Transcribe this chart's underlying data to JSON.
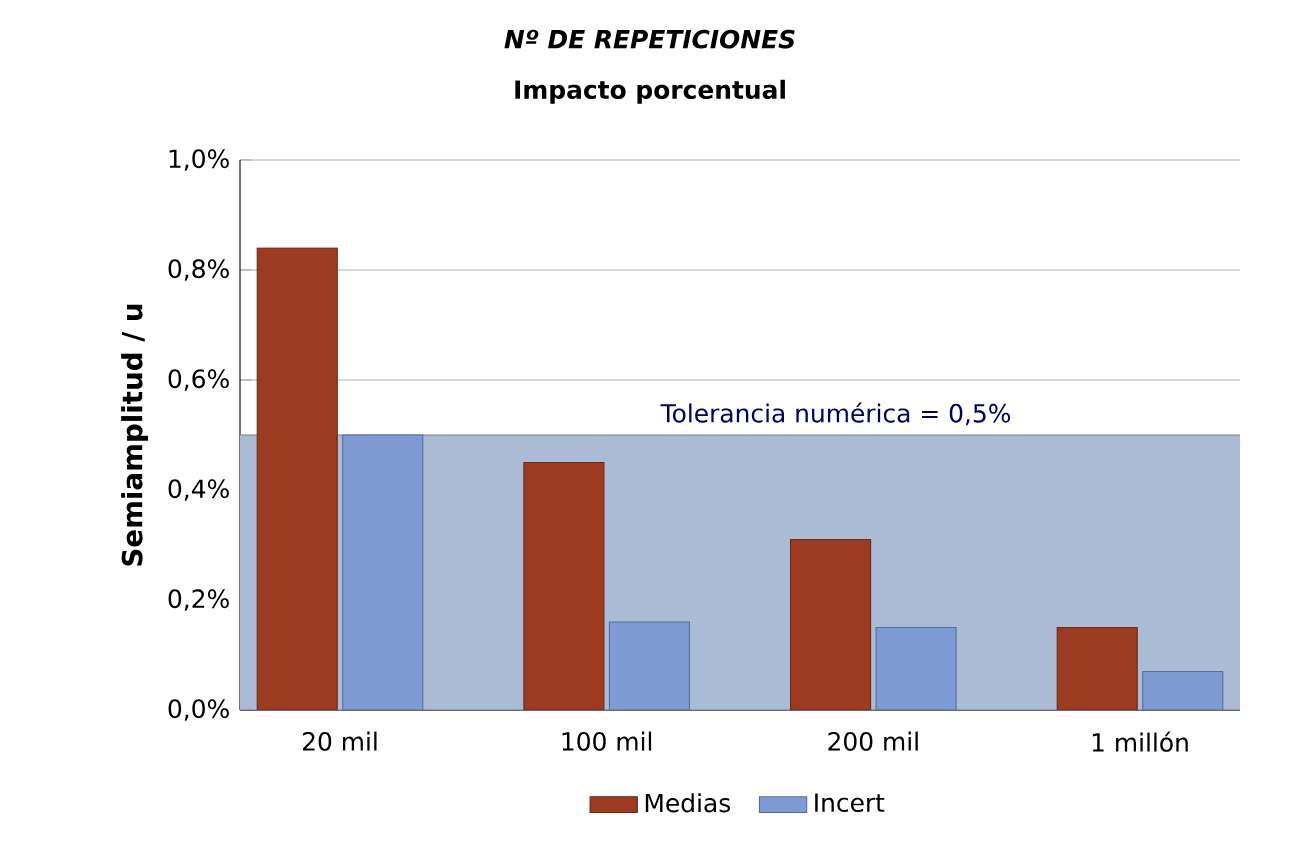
{
  "chart_data": {
    "type": "bar",
    "title": "*Nº DE REPETICIONES*",
    "subtitle": "Impacto porcentual",
    "ylabel": "Semiamplitud / u",
    "categories": [
      "20 mil",
      "100 mil",
      "200 mil",
      "1 millón"
    ],
    "series": [
      {
        "name": "Medias",
        "color": "#9c3a22",
        "values": [
          0.84,
          0.45,
          0.31,
          0.15
        ]
      },
      {
        "name": "Incert",
        "color": "#7f9bd6",
        "values": [
          0.5,
          0.16,
          0.15,
          0.07
        ]
      }
    ],
    "ylim": [
      0,
      1.0
    ],
    "yticks": [
      {
        "value": 0,
        "label": "0,0%"
      },
      {
        "value": 0.2,
        "label": "0,2%"
      },
      {
        "value": 0.4,
        "label": "0,4%"
      },
      {
        "value": 0.6,
        "label": "0,6%"
      },
      {
        "value": 0.8,
        "label": "0,8%"
      },
      {
        "value": 1.0,
        "label": "1,0%"
      }
    ],
    "bands": [
      {
        "axis": "y",
        "from": 0,
        "to": 0.5,
        "label": "Tolerancia numérica = 0,5%",
        "color": "#a9bcd4"
      }
    ],
    "grid": "y",
    "legend": "bottom"
  }
}
